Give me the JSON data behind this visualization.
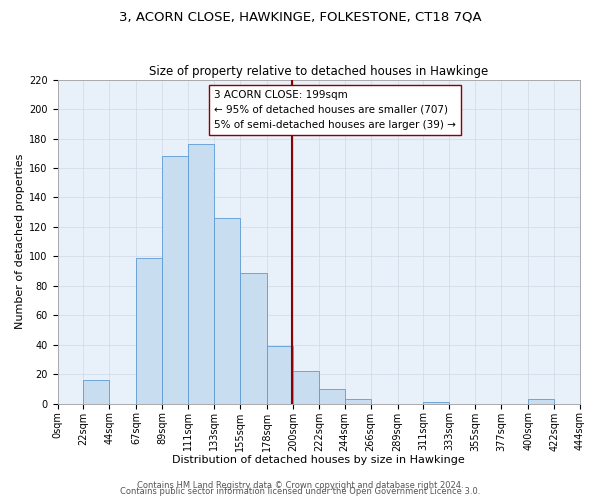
{
  "title": "3, ACORN CLOSE, HAWKINGE, FOLKESTONE, CT18 7QA",
  "subtitle": "Size of property relative to detached houses in Hawkinge",
  "xlabel": "Distribution of detached houses by size in Hawkinge",
  "ylabel": "Number of detached properties",
  "bin_edges": [
    0,
    22,
    44,
    67,
    89,
    111,
    133,
    155,
    178,
    200,
    222,
    244,
    266,
    289,
    311,
    333,
    355,
    377,
    400,
    422,
    444
  ],
  "bin_counts": [
    0,
    16,
    0,
    99,
    168,
    176,
    126,
    89,
    39,
    22,
    10,
    3,
    0,
    0,
    1,
    0,
    0,
    0,
    3,
    0
  ],
  "bar_facecolor": "#c9ddf0",
  "bar_edgecolor": "#5b9bd5",
  "grid_color": "#d0d8e8",
  "background_color": "#e8f0fa",
  "vline_x": 199,
  "vline_color": "#8b0000",
  "annotation_text": "3 ACORN CLOSE: 199sqm\n← 95% of detached houses are smaller (707)\n5% of semi-detached houses are larger (39) →",
  "annotation_box_facecolor": "white",
  "annotation_box_edgecolor": "#8b0000",
  "ylim": [
    0,
    220
  ],
  "yticks": [
    0,
    20,
    40,
    60,
    80,
    100,
    120,
    140,
    160,
    180,
    200,
    220
  ],
  "tick_labels": [
    "0sqm",
    "22sqm",
    "44sqm",
    "67sqm",
    "89sqm",
    "111sqm",
    "133sqm",
    "155sqm",
    "178sqm",
    "200sqm",
    "222sqm",
    "244sqm",
    "266sqm",
    "289sqm",
    "311sqm",
    "333sqm",
    "355sqm",
    "377sqm",
    "400sqm",
    "422sqm",
    "444sqm"
  ],
  "footer1": "Contains HM Land Registry data © Crown copyright and database right 2024.",
  "footer2": "Contains public sector information licensed under the Open Government Licence 3.0.",
  "title_fontsize": 9.5,
  "subtitle_fontsize": 8.5,
  "xlabel_fontsize": 8,
  "ylabel_fontsize": 8,
  "tick_fontsize": 7,
  "footer_fontsize": 6,
  "annotation_fontsize": 7.5
}
